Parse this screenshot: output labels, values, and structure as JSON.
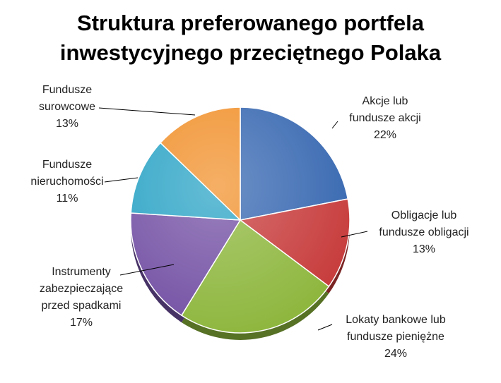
{
  "chart_data": {
    "type": "pie",
    "title_lines": [
      "Struktura preferowanego portfela",
      "inwestycyjnego przeciętnego Polaka"
    ],
    "slices": [
      {
        "label_lines": [
          "Akcje lub",
          "fundusze akcji"
        ],
        "value": 22,
        "value_label": "22%",
        "color": "#3566b0"
      },
      {
        "label_lines": [
          "Obligacje lub",
          "fundusze obligacji"
        ],
        "value": 13,
        "value_label": "13%",
        "color": "#c73a3a"
      },
      {
        "label_lines": [
          "Lokaty bankowe lub",
          "fundusze pieniężne"
        ],
        "value": 24,
        "value_label": "24%",
        "color": "#8db63c"
      },
      {
        "label_lines": [
          "Instrumenty",
          "zabezpieczające",
          "przed spadkami"
        ],
        "value": 17,
        "value_label": "17%",
        "color": "#7350a4"
      },
      {
        "label_lines": [
          "Fundusze",
          "nieruchomości"
        ],
        "value": 11,
        "value_label": "11%",
        "color": "#2aa3c5"
      },
      {
        "label_lines": [
          "Fundusze",
          "surowcowe"
        ],
        "value": 13,
        "value_label": "13%",
        "color": "#f1902a"
      }
    ]
  }
}
